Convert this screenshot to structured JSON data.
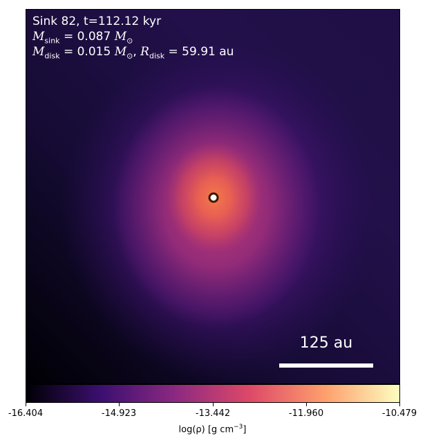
{
  "panel": {
    "sink_title": "Sink 82, t=112.12 kyr",
    "sink_mass": {
      "symbol": "M",
      "sub": "sink",
      "value": "= 0.087",
      "unit": "M",
      "unit_sub": "⊙"
    },
    "disk": {
      "mass_symbol": "M",
      "mass_sub": "disk",
      "mass_value": "= 0.015",
      "unit": "M",
      "unit_sub": "⊙",
      "radius_symbol": "R",
      "radius_sub": "disk",
      "radius_value": "= 59.91 au"
    }
  },
  "scalebar": {
    "label": "125 au"
  },
  "colorbar": {
    "ticks": [
      "-16.404",
      "-14.923",
      "-13.442",
      "-11.960",
      "-10.479"
    ],
    "label": "log(ρ) [g cm",
    "label_exp": "−3",
    "label_end": "]",
    "colors": [
      "#000004",
      "#3b0f70",
      "#8c2981",
      "#de4968",
      "#fe9f6d",
      "#fcfdbf"
    ]
  },
  "colors": {
    "frame": "#000000",
    "overlay_text": "#ffffff",
    "sink_marker_fill": "#ffffff",
    "sink_marker_ring": "#3a1a00"
  }
}
